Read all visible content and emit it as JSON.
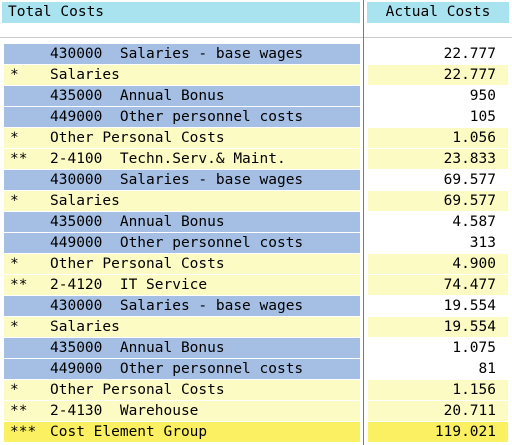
{
  "header": {
    "left": "Total Costs",
    "right": "Actual Costs"
  },
  "rows": [
    {
      "type": "detail",
      "marker": "",
      "text": "430000  Salaries - base wages",
      "value": "22.777"
    },
    {
      "type": "sub",
      "marker": "*",
      "text": "Salaries",
      "value": "22.777"
    },
    {
      "type": "detail",
      "marker": "",
      "text": "435000  Annual Bonus",
      "value": "950"
    },
    {
      "type": "detail",
      "marker": "",
      "text": "449000  Other personnel costs",
      "value": "105"
    },
    {
      "type": "sub",
      "marker": "*",
      "text": "Other Personal Costs",
      "value": "1.056"
    },
    {
      "type": "sub",
      "marker": "**",
      "text": "2-4100  Techn.Serv.& Maint.",
      "value": "23.833"
    },
    {
      "type": "detail",
      "marker": "",
      "text": "430000  Salaries - base wages",
      "value": "69.577"
    },
    {
      "type": "sub",
      "marker": "*",
      "text": "Salaries",
      "value": "69.577"
    },
    {
      "type": "detail",
      "marker": "",
      "text": "435000  Annual Bonus",
      "value": "4.587"
    },
    {
      "type": "detail",
      "marker": "",
      "text": "449000  Other personnel costs",
      "value": "313"
    },
    {
      "type": "sub",
      "marker": "*",
      "text": "Other Personal Costs",
      "value": "4.900"
    },
    {
      "type": "sub",
      "marker": "**",
      "text": "2-4120  IT Service",
      "value": "74.477"
    },
    {
      "type": "detail",
      "marker": "",
      "text": "430000  Salaries - base wages",
      "value": "19.554"
    },
    {
      "type": "sub",
      "marker": "*",
      "text": "Salaries",
      "value": "19.554"
    },
    {
      "type": "detail",
      "marker": "",
      "text": "435000  Annual Bonus",
      "value": "1.075"
    },
    {
      "type": "detail",
      "marker": "",
      "text": "449000  Other personnel costs",
      "value": "81"
    },
    {
      "type": "sub",
      "marker": "*",
      "text": "Other Personal Costs",
      "value": "1.156"
    },
    {
      "type": "sub",
      "marker": "**",
      "text": "2-4130  Warehouse",
      "value": "20.711"
    },
    {
      "type": "total",
      "marker": "***",
      "text": "Cost Element Group",
      "value": "119.021"
    }
  ]
}
